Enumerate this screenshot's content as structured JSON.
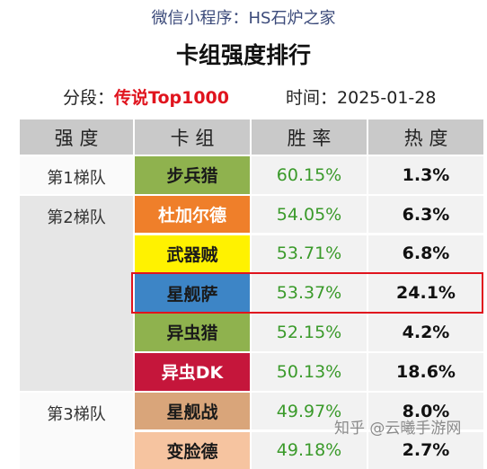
{
  "header": {
    "source": "微信小程序：HS石炉之家",
    "title": "卡组强度排行",
    "segment_label": "分段：",
    "segment": "传说Top1000",
    "date_label": "时间：",
    "date": "2025-01-28"
  },
  "table": {
    "columns": [
      "强 度",
      "卡 组",
      "胜 率",
      "热 度"
    ],
    "tiers": [
      {
        "label": "第1梯队",
        "rows": [
          {
            "deck": "步兵猎",
            "color": "#8fb24e",
            "text_color": "#1a1a1a",
            "win_rate": "60.15%",
            "popularity": "1.3%"
          }
        ]
      },
      {
        "label": "第2梯队",
        "rows": [
          {
            "deck": "杜加尔德",
            "color": "#ef7f2a",
            "text_color": "#ffffff",
            "win_rate": "54.05%",
            "popularity": "6.3%"
          },
          {
            "deck": "武器贼",
            "color": "#fff200",
            "text_color": "#1a1a1a",
            "win_rate": "53.71%",
            "popularity": "6.8%"
          },
          {
            "deck": "星舰萨",
            "color": "#3d85c6",
            "text_color": "#1a1a1a",
            "win_rate": "53.37%",
            "popularity": "24.1%"
          },
          {
            "deck": "异虫猎",
            "color": "#8fb24e",
            "text_color": "#1a1a1a",
            "win_rate": "52.15%",
            "popularity": "4.2%"
          },
          {
            "deck": "异虫DK",
            "color": "#c5163b",
            "text_color": "#ffffff",
            "win_rate": "50.13%",
            "popularity": "18.6%"
          }
        ]
      },
      {
        "label": "第3梯队",
        "rows": [
          {
            "deck": "星舰战",
            "color": "#d9a57a",
            "text_color": "#1a1a1a",
            "win_rate": "49.97%",
            "popularity": "8.0%"
          },
          {
            "deck": "变脸德",
            "color": "#f6c4a0",
            "text_color": "#1a1a1a",
            "win_rate": "49.18%",
            "popularity": "2.7%"
          }
        ]
      }
    ]
  },
  "watermark": "知乎 @云曦手游网"
}
